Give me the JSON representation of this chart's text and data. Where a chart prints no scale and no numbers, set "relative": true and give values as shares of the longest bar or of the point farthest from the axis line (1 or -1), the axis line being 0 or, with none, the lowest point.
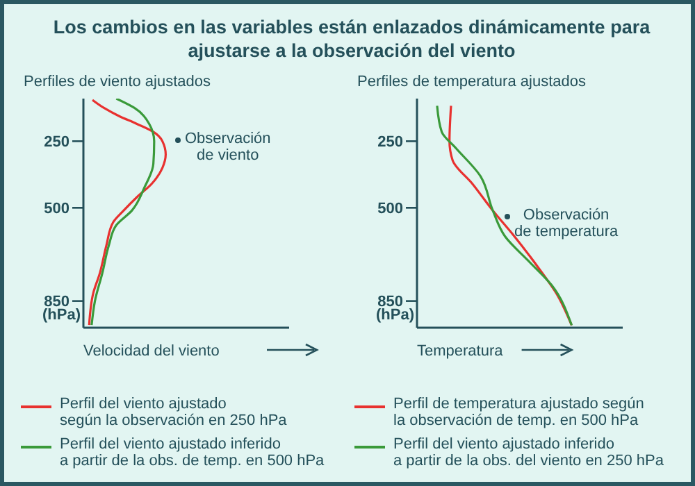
{
  "chart_data": [
    {
      "type": "line",
      "title": "Los cambios en las variables están enlazados dinámicamente para ajustarse a la observación del viento",
      "subtitle": "Perfiles de viento ajustados",
      "xlabel": "Velocidad del viento",
      "ylabel": "(hPa)",
      "orientation": "horizontal",
      "relative": true,
      "ylim": [
        950,
        90
      ],
      "yticks": [
        250,
        500,
        850
      ],
      "legend": "bottom",
      "annotations": [
        "Observación\nde viento"
      ],
      "series": [
        {
          "name": "Perfil del viento ajustado\nsegún la observación en 250 hPa",
          "color": "#e8312f",
          "x": [
            95,
            125,
            155,
            185,
            215,
            250,
            300,
            350,
            410,
            460,
            510,
            555,
            640,
            745,
            820,
            940
          ],
          "values": [
            0.11,
            0.25,
            0.43,
            0.65,
            0.85,
            0.96,
            1.0,
            0.96,
            0.83,
            0.65,
            0.49,
            0.36,
            0.28,
            0.2,
            0.12,
            0.07
          ]
        },
        {
          "name": "Perfil del viento ajustado inferido\na partir de la obs. de temp. en 500 hPa",
          "color": "#3a9a3a",
          "x": [
            90,
            125,
            185,
            250,
            335,
            425,
            510,
            565,
            640,
            745,
            850,
            940
          ],
          "values": [
            0.4,
            0.62,
            0.8,
            0.86,
            0.85,
            0.74,
            0.59,
            0.4,
            0.31,
            0.23,
            0.14,
            0.1
          ]
        }
      ]
    },
    {
      "type": "line",
      "subtitle": "Perfiles de temperatura ajustados",
      "xlabel": "Temperatura",
      "ylabel": "(hPa)",
      "orientation": "horizontal",
      "relative": true,
      "ylim": [
        950,
        90
      ],
      "yticks": [
        250,
        500,
        850
      ],
      "legend": "bottom",
      "annotations": [
        "Observación\nde temperatura"
      ],
      "series": [
        {
          "name": "Perfil de temperatura ajustado según\nla observación de temp. en 500 hPa",
          "color": "#e8312f",
          "x": [
            117,
            250,
            321,
            411,
            510,
            600,
            729,
            820,
            941
          ],
          "values": [
            0.22,
            0.21,
            0.23,
            0.36,
            0.49,
            0.62,
            0.79,
            0.9,
            1.0
          ]
        },
        {
          "name": "Perfil del viento ajustado inferido\na partir de la obs. del viento en 250 hPa",
          "color": "#3a9a3a",
          "x": [
            117,
            215,
            275,
            381,
            510,
            608,
            699,
            790,
            941
          ],
          "values": [
            0.13,
            0.16,
            0.25,
            0.41,
            0.49,
            0.57,
            0.72,
            0.87,
            1.0
          ]
        }
      ]
    }
  ]
}
